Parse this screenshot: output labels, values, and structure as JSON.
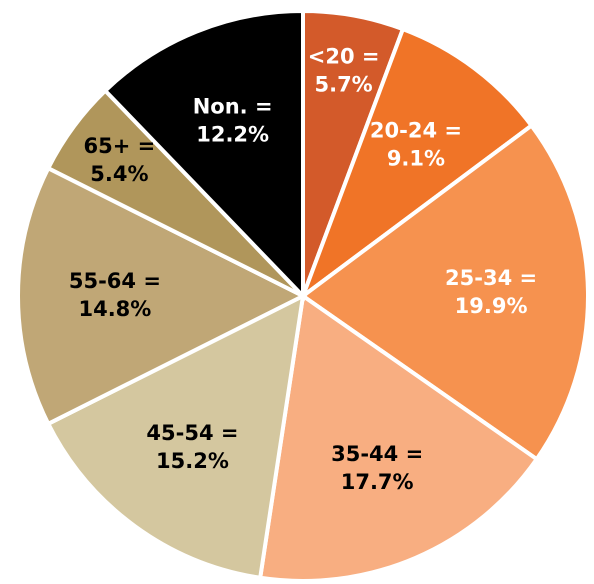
{
  "chart_data": {
    "type": "pie",
    "categories": [
      "<20 =",
      "20-24 =",
      "25-34 =",
      "35-44 =",
      "45-54 =",
      "55-64 =",
      "65+ =",
      "Non. ="
    ],
    "values": [
      5.7,
      9.1,
      19.9,
      17.7,
      15.2,
      14.8,
      5.4,
      12.2
    ],
    "value_labels": [
      "5.7%",
      "9.1%",
      "19.9%",
      "17.7%",
      "15.2%",
      "14.8%",
      "5.4%",
      "12.2%"
    ],
    "colors": [
      "#d35a2a",
      "#f07427",
      "#f6924f",
      "#f8ae81",
      "#d4c79f",
      "#c0a776",
      "#b0965b",
      "#000000"
    ],
    "label_colors": [
      "#ffffff",
      "#ffffff",
      "#ffffff",
      "#000000",
      "#000000",
      "#000000",
      "#000000",
      "#ffffff"
    ]
  }
}
